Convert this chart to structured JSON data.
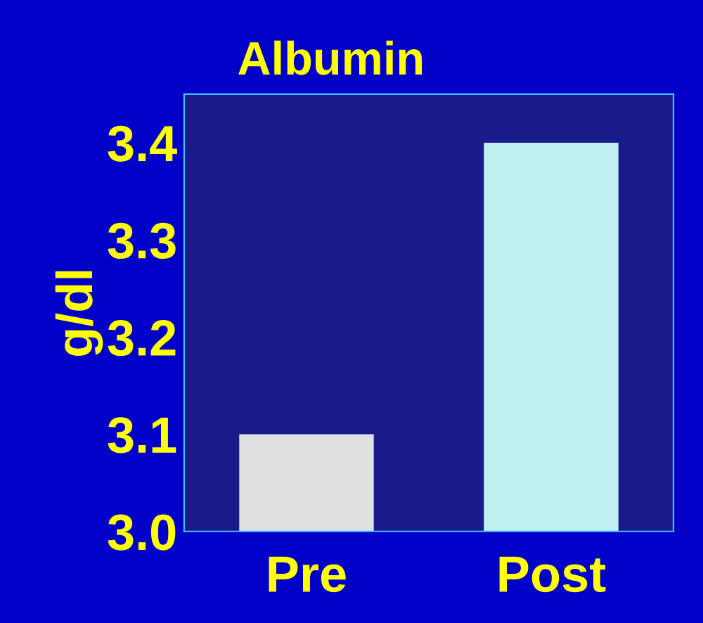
{
  "chart_data": {
    "type": "bar",
    "title": "Albumin",
    "ylabel": "g/dl",
    "categories": [
      "Pre",
      "Post"
    ],
    "values": [
      3.1,
      3.4
    ],
    "colors": [
      "#e0e0e0",
      "#c0f0f0"
    ],
    "ylim": [
      3.0,
      3.45
    ],
    "yticks": [
      {
        "value": 3.0,
        "label": "3.0"
      },
      3.1,
      3.2,
      3.3,
      3.4
    ],
    "grid": false
  }
}
